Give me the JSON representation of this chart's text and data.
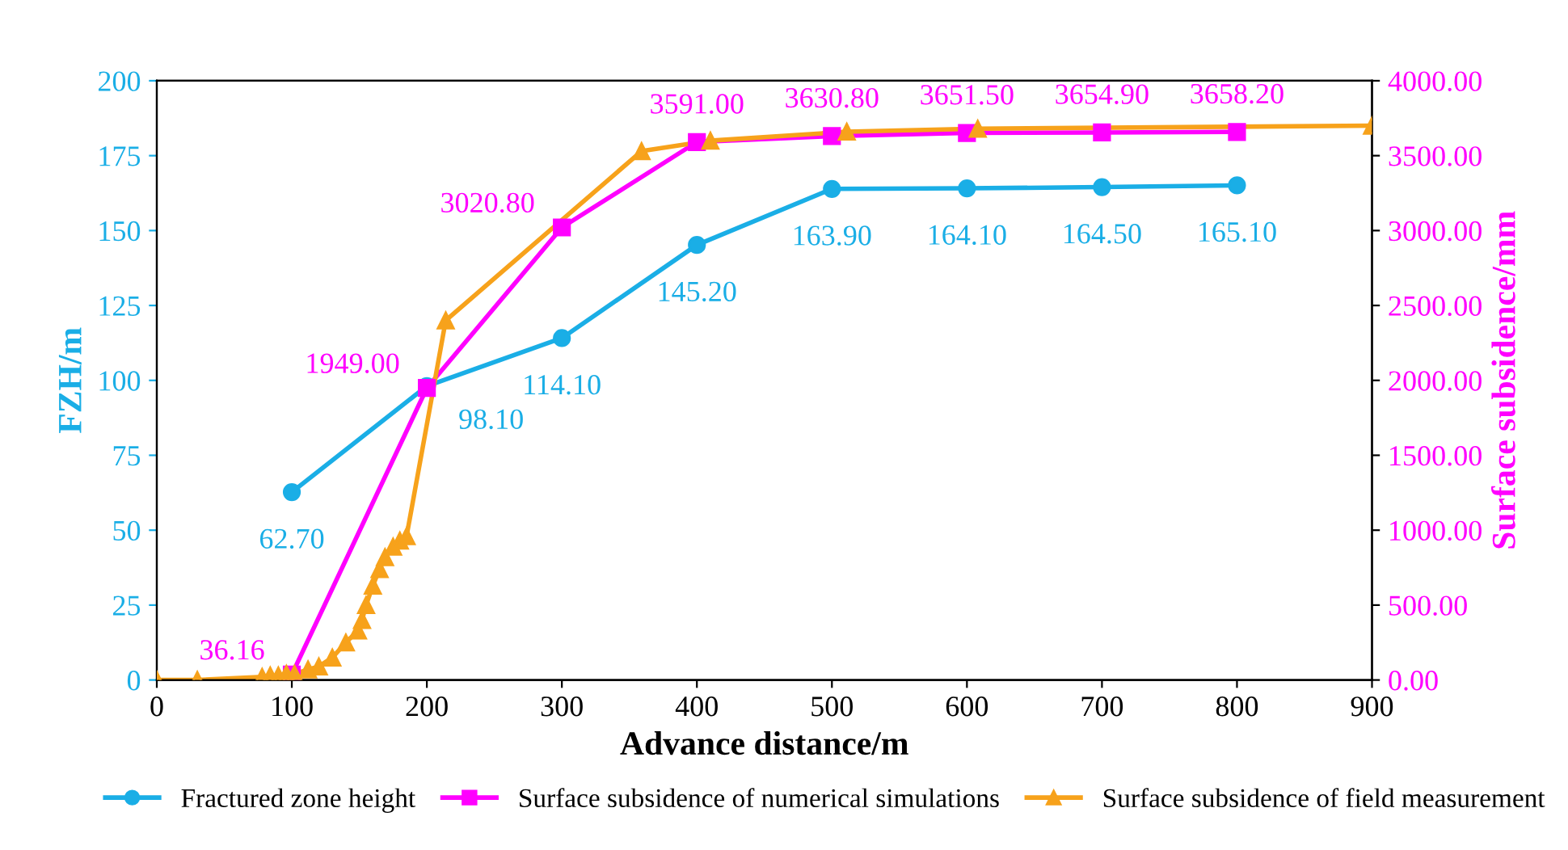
{
  "chart_data": {
    "type": "line",
    "xlabel": "Advance distance/m",
    "ylabel": "FZH/m",
    "y2label": "Surface subsidence/mm",
    "xlim": [
      0,
      900
    ],
    "xticks": [
      0,
      100,
      200,
      300,
      400,
      500,
      600,
      700,
      800,
      900
    ],
    "ylim": [
      0,
      200
    ],
    "yticks": [
      0,
      25,
      50,
      75,
      100,
      125,
      150,
      175,
      200
    ],
    "y2lim": [
      0,
      4000
    ],
    "y2ticks": [
      {
        "value": 0,
        "label": "0.00"
      },
      {
        "value": 500,
        "label": "500.00"
      },
      {
        "value": 1000,
        "label": "1000.00"
      },
      {
        "value": 1500,
        "label": "1500.00"
      },
      {
        "value": 2000,
        "label": "2000.00"
      },
      {
        "value": 2500,
        "label": "2500.00"
      },
      {
        "value": 3000,
        "label": "3000.00"
      },
      {
        "value": 3500,
        "label": "3500.00"
      },
      {
        "value": 4000,
        "label": "4000.00"
      }
    ],
    "grid": false,
    "legend": "bottom",
    "series": [
      {
        "name": "Fractured zone height",
        "color": "#1aaee6",
        "marker": "circle",
        "x": [
          100,
          200,
          300,
          400,
          500,
          600,
          700,
          800
        ],
        "values": [
          62.7,
          98.1,
          114.1,
          145.2,
          163.9,
          164.1,
          164.5,
          165.1
        ],
        "value_labels": [
          "62.70",
          "98.10",
          "114.10",
          "145.20",
          "163.90",
          "164.10",
          "164.50",
          "165.10"
        ]
      },
      {
        "name": "Surface subsidence of numerical simulations",
        "color": "#ff00ff",
        "marker": "square",
        "axis": "y2",
        "x": [
          100,
          200,
          300,
          400,
          500,
          600,
          700,
          800
        ],
        "values": [
          36.16,
          1949.0,
          3020.8,
          3591.0,
          3630.8,
          3651.5,
          3654.9,
          3658.2
        ],
        "value_labels": [
          "36.16",
          "1949.00",
          "3020.80",
          "3591.00",
          "3630.80",
          "3651.50",
          "3654.90",
          "3658.20"
        ]
      },
      {
        "name": "Surface subsidence of field measurement",
        "color": "#f7a21b",
        "marker": "triangle",
        "axis": "y2",
        "x": [
          0,
          30,
          78,
          84,
          90,
          96,
          102,
          112,
          120,
          130,
          140,
          149,
          152,
          155,
          160,
          165,
          169,
          175,
          180,
          185,
          214,
          359,
          410,
          511,
          608,
          900
        ],
        "values": [
          0,
          0,
          20,
          30,
          30,
          40,
          40,
          70,
          90,
          150,
          250,
          330,
          400,
          500,
          630,
          740,
          820,
          890,
          930,
          960,
          2400,
          3530,
          3600,
          3660,
          3680,
          3700
        ]
      }
    ]
  }
}
